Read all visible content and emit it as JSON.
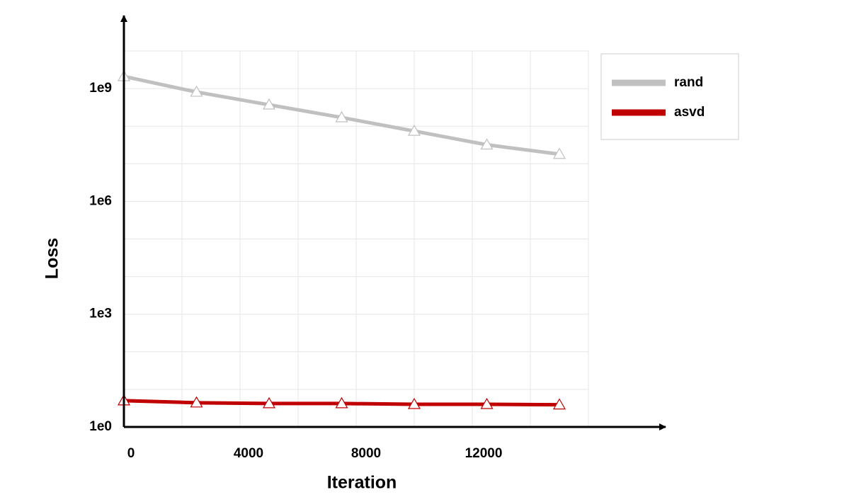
{
  "chart_data": {
    "type": "line",
    "x_label": "Iteration",
    "y_label": "Loss",
    "x": [
      0,
      2500,
      5000,
      7500,
      10000,
      12500,
      15000
    ],
    "series": [
      {
        "name": "rand",
        "color": "#c0c0c0",
        "values": [
          2100000000,
          810000000,
          370000000,
          170000000,
          74000000,
          32000000,
          18000000
        ]
      },
      {
        "name": "asvd",
        "color": "#c00000",
        "values": [
          5,
          4.4,
          4.2,
          4.2,
          4.0,
          4.0,
          3.9
        ]
      }
    ],
    "xlim": [
      0,
      16000
    ],
    "xticks": [
      0,
      4000,
      8000,
      12000
    ],
    "xminor_ticks": [
      2000,
      6000,
      10000,
      14000
    ],
    "ylim": [
      1,
      10000000000
    ],
    "y_log": true,
    "yticks": [
      {
        "value": 1,
        "label": "1e0"
      },
      {
        "value": 1000,
        "label": "1e3"
      },
      {
        "value": 1000000,
        "label": "1e6"
      },
      {
        "value": 1000000000,
        "label": "1e9"
      }
    ],
    "yminor_ticks": [
      10,
      100,
      10000,
      100000,
      10000000,
      100000000,
      10000000000
    ],
    "grid": true,
    "legend": "right"
  }
}
